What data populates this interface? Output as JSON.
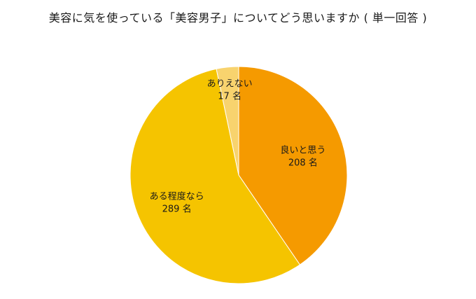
{
  "title": "美容に気を使っている「美容男子」についてどう思いますか ( 単一回答 )",
  "chart_data": {
    "type": "pie",
    "title": "美容に気を使っている「美容男子」についてどう思いますか ( 単一回答 )",
    "unit": "名",
    "slices": [
      {
        "label": "良いと思う",
        "value": 208,
        "color": "#F59A00"
      },
      {
        "label": "ある程度なら",
        "value": 289,
        "color": "#F5C400"
      },
      {
        "label": "ありえない",
        "value": 17,
        "color": "#F8D36E"
      }
    ],
    "start": "12 o'clock",
    "direction": "clockwise",
    "legend": "none"
  }
}
